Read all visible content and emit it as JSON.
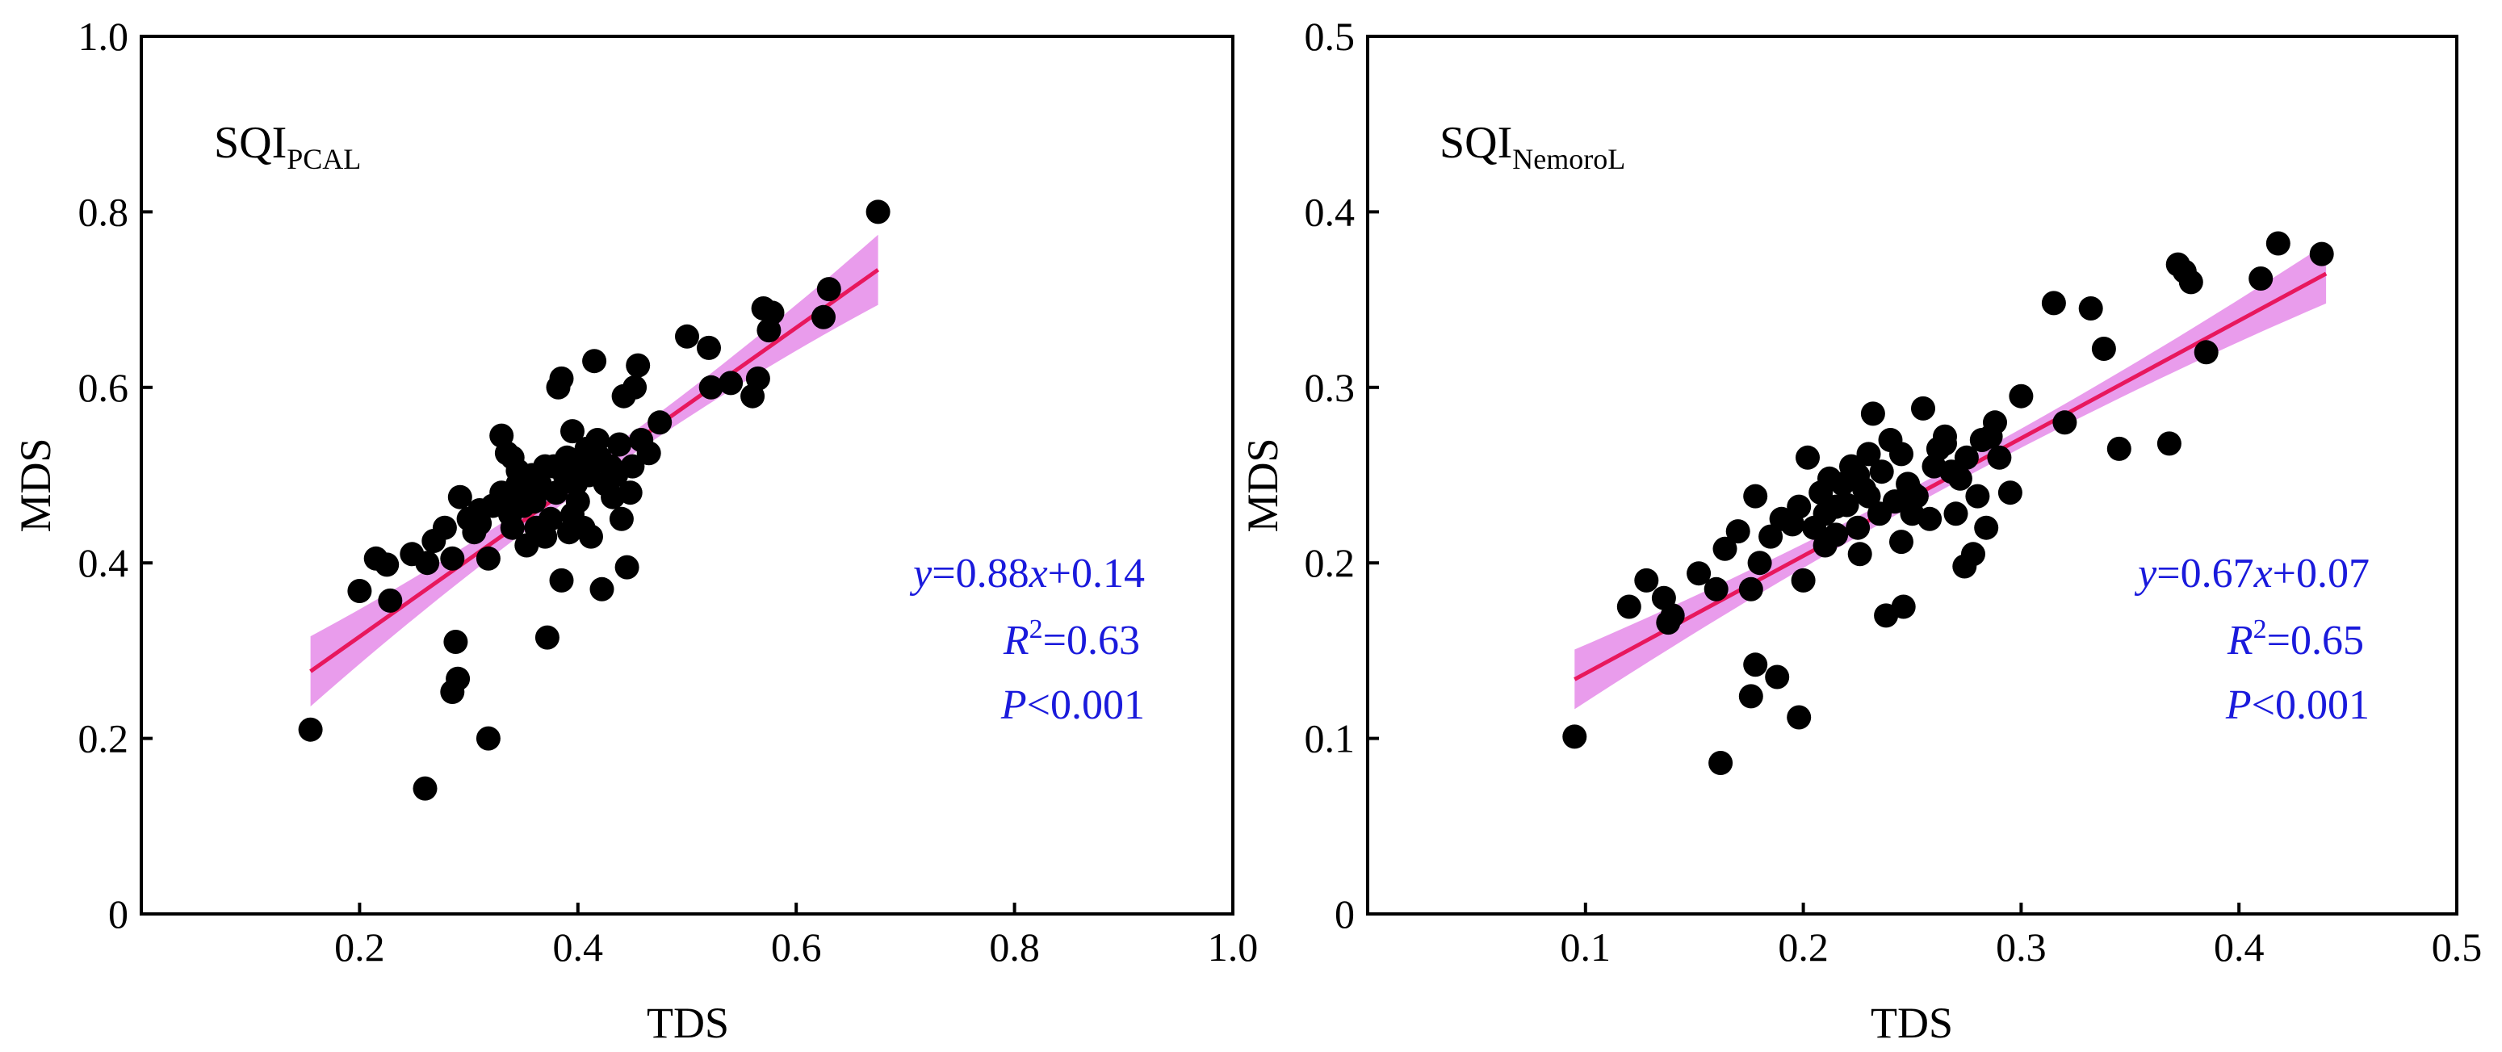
{
  "colors": {
    "points": "#000000",
    "fit_line": "#e8175d",
    "ci_band": "#e27be6",
    "stats_text": "#1a1adc",
    "axes": "#000000"
  },
  "chart_data": [
    {
      "type": "scatter",
      "panel_label": "SQI",
      "panel_label_sub": "PCAL",
      "xlabel": "TDS",
      "ylabel": "MDS",
      "xlim": [
        0,
        1.0
      ],
      "ylim": [
        0,
        1.0
      ],
      "xticks": [
        0.2,
        0.4,
        0.6,
        0.8,
        1.0
      ],
      "xtick_labels": [
        "0.2",
        "0.4",
        "0.6",
        "0.8",
        "1.0"
      ],
      "yticks": [
        0,
        0.2,
        0.4,
        0.6,
        0.8,
        1.0
      ],
      "ytick_labels": [
        "0",
        "0.2",
        "0.4",
        "0.6",
        "0.8",
        "1.0"
      ],
      "fit": {
        "slope": 0.88,
        "intercept": 0.14,
        "x_range": [
          0.155,
          0.675
        ],
        "ci_half_width_ends": 0.04,
        "ci_half_width_mid": 0.012
      },
      "equation": {
        "y": "y",
        "eq1": "=0.88",
        "x": "x",
        "eq2": "+0.14"
      },
      "r2": {
        "R": "R",
        "sup": "2",
        "value": "=0.63"
      },
      "p": {
        "P": "P",
        "value": "<0.001"
      },
      "points": [
        [
          0.155,
          0.21
        ],
        [
          0.26,
          0.143
        ],
        [
          0.318,
          0.2
        ],
        [
          0.285,
          0.253
        ],
        [
          0.29,
          0.268
        ],
        [
          0.288,
          0.31
        ],
        [
          0.2,
          0.368
        ],
        [
          0.215,
          0.405
        ],
        [
          0.225,
          0.398
        ],
        [
          0.228,
          0.357
        ],
        [
          0.248,
          0.41
        ],
        [
          0.262,
          0.4
        ],
        [
          0.268,
          0.425
        ],
        [
          0.278,
          0.44
        ],
        [
          0.285,
          0.405
        ],
        [
          0.292,
          0.475
        ],
        [
          0.3,
          0.45
        ],
        [
          0.305,
          0.435
        ],
        [
          0.31,
          0.445
        ],
        [
          0.318,
          0.405
        ],
        [
          0.322,
          0.465
        ],
        [
          0.33,
          0.48
        ],
        [
          0.335,
          0.47
        ],
        [
          0.338,
          0.455
        ],
        [
          0.34,
          0.44
        ],
        [
          0.345,
          0.49
        ],
        [
          0.35,
          0.465
        ],
        [
          0.353,
          0.42
        ],
        [
          0.358,
          0.5
        ],
        [
          0.36,
          0.475
        ],
        [
          0.362,
          0.44
        ],
        [
          0.365,
          0.49
        ],
        [
          0.37,
          0.51
        ],
        [
          0.372,
          0.315
        ],
        [
          0.375,
          0.45
        ],
        [
          0.378,
          0.51
        ],
        [
          0.38,
          0.48
        ],
        [
          0.382,
          0.6
        ],
        [
          0.385,
          0.61
        ],
        [
          0.385,
          0.38
        ],
        [
          0.388,
          0.5
        ],
        [
          0.39,
          0.52
        ],
        [
          0.392,
          0.435
        ],
        [
          0.395,
          0.55
        ],
        [
          0.398,
          0.49
        ],
        [
          0.4,
          0.47
        ],
        [
          0.402,
          0.51
        ],
        [
          0.405,
          0.44
        ],
        [
          0.408,
          0.53
        ],
        [
          0.41,
          0.5
        ],
        [
          0.412,
          0.43
        ],
        [
          0.415,
          0.63
        ],
        [
          0.418,
          0.54
        ],
        [
          0.42,
          0.52
        ],
        [
          0.422,
          0.37
        ],
        [
          0.425,
          0.49
        ],
        [
          0.43,
          0.51
        ],
        [
          0.432,
          0.475
        ],
        [
          0.435,
          0.5
        ],
        [
          0.438,
          0.535
        ],
        [
          0.44,
          0.45
        ],
        [
          0.442,
          0.59
        ],
        [
          0.445,
          0.395
        ],
        [
          0.448,
          0.48
        ],
        [
          0.45,
          0.51
        ],
        [
          0.452,
          0.6
        ],
        [
          0.455,
          0.625
        ],
        [
          0.458,
          0.54
        ],
        [
          0.465,
          0.525
        ],
        [
          0.475,
          0.56
        ],
        [
          0.5,
          0.658
        ],
        [
          0.52,
          0.645
        ],
        [
          0.522,
          0.6
        ],
        [
          0.54,
          0.605
        ],
        [
          0.56,
          0.59
        ],
        [
          0.565,
          0.61
        ],
        [
          0.57,
          0.69
        ],
        [
          0.575,
          0.665
        ],
        [
          0.578,
          0.685
        ],
        [
          0.625,
          0.68
        ],
        [
          0.63,
          0.712
        ],
        [
          0.675,
          0.8
        ],
        [
          0.335,
          0.525
        ],
        [
          0.33,
          0.545
        ],
        [
          0.34,
          0.52
        ],
        [
          0.345,
          0.505
        ],
        [
          0.31,
          0.46
        ],
        [
          0.36,
          0.47
        ],
        [
          0.37,
          0.43
        ],
        [
          0.395,
          0.455
        ]
      ]
    },
    {
      "type": "scatter",
      "panel_label": "SQI",
      "panel_label_sub": "NemoroL",
      "xlabel": "TDS",
      "ylabel": "MDS",
      "xlim": [
        0,
        0.5
      ],
      "ylim": [
        0,
        0.5
      ],
      "xticks": [
        0.1,
        0.2,
        0.3,
        0.4,
        0.5
      ],
      "xtick_labels": [
        "0.1",
        "0.2",
        "0.3",
        "0.4",
        "0.5"
      ],
      "yticks": [
        0,
        0.1,
        0.2,
        0.3,
        0.4,
        0.5
      ],
      "ytick_labels": [
        "0",
        "0.1",
        "0.2",
        "0.3",
        "0.4",
        "0.5"
      ],
      "fit": {
        "slope": 0.67,
        "intercept": 0.07,
        "x_range": [
          0.095,
          0.44
        ],
        "ci_half_width_ends": 0.017,
        "ci_half_width_mid": 0.005
      },
      "equation": {
        "y": "y",
        "eq1": "=0.67",
        "x": "x",
        "eq2": "+0.07"
      },
      "r2": {
        "R": "R",
        "sup": "2",
        "value": "=0.65"
      },
      "p": {
        "P": "P",
        "value": "<0.001"
      },
      "points": [
        [
          0.095,
          0.101
        ],
        [
          0.162,
          0.086
        ],
        [
          0.198,
          0.112
        ],
        [
          0.178,
          0.142
        ],
        [
          0.188,
          0.135
        ],
        [
          0.176,
          0.124
        ],
        [
          0.12,
          0.175
        ],
        [
          0.128,
          0.19
        ],
        [
          0.136,
          0.18
        ],
        [
          0.138,
          0.166
        ],
        [
          0.14,
          0.17
        ],
        [
          0.152,
          0.194
        ],
        [
          0.16,
          0.185
        ],
        [
          0.164,
          0.208
        ],
        [
          0.17,
          0.218
        ],
        [
          0.176,
          0.185
        ],
        [
          0.178,
          0.238
        ],
        [
          0.18,
          0.2
        ],
        [
          0.185,
          0.215
        ],
        [
          0.19,
          0.225
        ],
        [
          0.195,
          0.222
        ],
        [
          0.198,
          0.232
        ],
        [
          0.2,
          0.19
        ],
        [
          0.202,
          0.26
        ],
        [
          0.205,
          0.22
        ],
        [
          0.208,
          0.24
        ],
        [
          0.21,
          0.228
        ],
        [
          0.212,
          0.248
        ],
        [
          0.215,
          0.216
        ],
        [
          0.218,
          0.245
        ],
        [
          0.22,
          0.233
        ],
        [
          0.222,
          0.255
        ],
        [
          0.225,
          0.22
        ],
        [
          0.226,
          0.205
        ],
        [
          0.228,
          0.242
        ],
        [
          0.23,
          0.262
        ],
        [
          0.232,
          0.285
        ],
        [
          0.235,
          0.228
        ],
        [
          0.236,
          0.252
        ],
        [
          0.238,
          0.17
        ],
        [
          0.24,
          0.27
        ],
        [
          0.242,
          0.235
        ],
        [
          0.245,
          0.212
        ],
        [
          0.246,
          0.175
        ],
        [
          0.248,
          0.245
        ],
        [
          0.25,
          0.228
        ],
        [
          0.252,
          0.238
        ],
        [
          0.255,
          0.288
        ],
        [
          0.258,
          0.225
        ],
        [
          0.26,
          0.255
        ],
        [
          0.262,
          0.265
        ],
        [
          0.265,
          0.272
        ],
        [
          0.268,
          0.252
        ],
        [
          0.27,
          0.228
        ],
        [
          0.272,
          0.248
        ],
        [
          0.274,
          0.198
        ],
        [
          0.275,
          0.26
        ],
        [
          0.278,
          0.205
        ],
        [
          0.28,
          0.238
        ],
        [
          0.282,
          0.27
        ],
        [
          0.284,
          0.22
        ],
        [
          0.286,
          0.272
        ],
        [
          0.288,
          0.28
        ],
        [
          0.29,
          0.26
        ],
        [
          0.295,
          0.24
        ],
        [
          0.3,
          0.295
        ],
        [
          0.315,
          0.348
        ],
        [
          0.32,
          0.28
        ],
        [
          0.332,
          0.345
        ],
        [
          0.338,
          0.322
        ],
        [
          0.345,
          0.265
        ],
        [
          0.368,
          0.268
        ],
        [
          0.372,
          0.37
        ],
        [
          0.375,
          0.366
        ],
        [
          0.378,
          0.36
        ],
        [
          0.385,
          0.32
        ],
        [
          0.41,
          0.362
        ],
        [
          0.418,
          0.382
        ],
        [
          0.438,
          0.376
        ],
        [
          0.215,
          0.232
        ],
        [
          0.225,
          0.25
        ],
        [
          0.245,
          0.262
        ],
        [
          0.265,
          0.268
        ],
        [
          0.25,
          0.24
        ],
        [
          0.21,
          0.21
        ],
        [
          0.23,
          0.238
        ]
      ]
    }
  ]
}
